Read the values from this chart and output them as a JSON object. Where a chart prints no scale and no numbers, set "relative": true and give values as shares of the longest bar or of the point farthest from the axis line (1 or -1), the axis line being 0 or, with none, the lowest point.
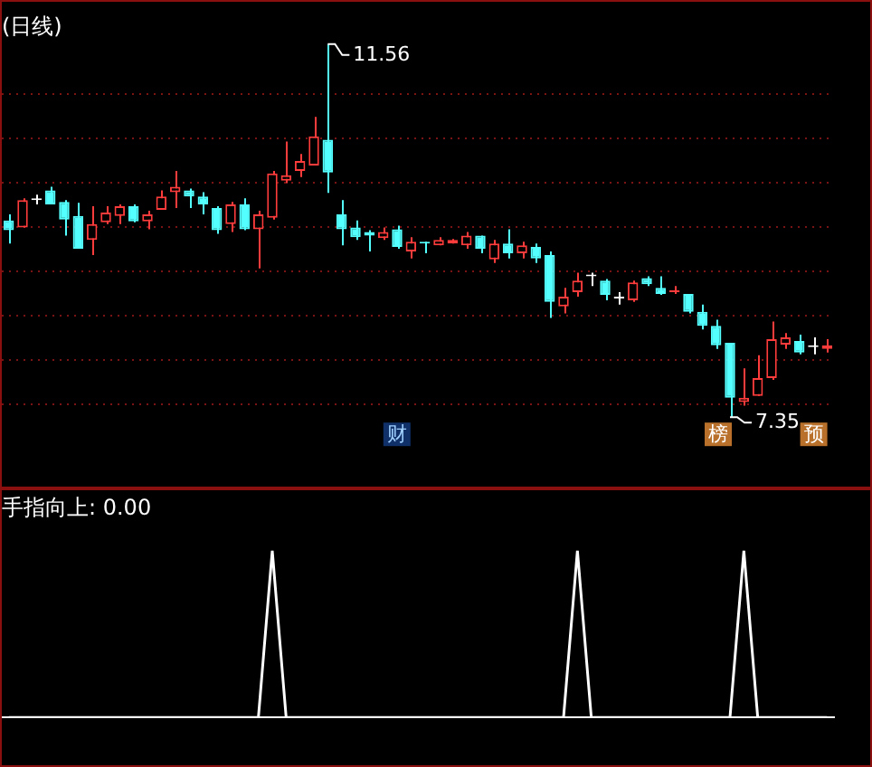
{
  "chart_data": [
    {
      "type": "candlestick",
      "title": "(日线)",
      "categories": [
        null,
        null,
        null,
        null,
        null,
        null,
        null,
        null,
        null,
        null,
        null,
        null,
        null,
        null,
        null,
        null,
        null,
        null,
        null,
        null,
        null,
        null,
        null,
        null,
        null,
        null,
        null,
        null,
        null,
        null,
        null,
        null,
        null,
        null,
        null,
        null,
        null,
        null,
        null,
        null,
        null,
        null,
        null,
        null,
        null,
        null,
        null,
        null,
        null,
        null,
        null,
        null,
        null,
        null,
        null,
        null,
        null,
        null,
        null,
        null
      ],
      "ohlc": [
        [
          9.57,
          9.64,
          9.31,
          9.46
        ],
        [
          9.49,
          9.82,
          9.49,
          9.8
        ],
        [
          9.8,
          9.86,
          9.75,
          9.8
        ],
        [
          9.91,
          9.95,
          9.75,
          9.75
        ],
        [
          9.78,
          9.8,
          9.4,
          9.58
        ],
        [
          9.62,
          9.77,
          9.25,
          9.25
        ],
        [
          9.35,
          9.73,
          9.18,
          9.53
        ],
        [
          9.55,
          9.73,
          9.53,
          9.66
        ],
        [
          9.62,
          9.75,
          9.53,
          9.73
        ],
        [
          9.73,
          9.75,
          9.55,
          9.56
        ],
        [
          9.56,
          9.68,
          9.47,
          9.64
        ],
        [
          9.69,
          9.91,
          9.69,
          9.84
        ],
        [
          9.89,
          10.13,
          9.71,
          9.95
        ],
        [
          9.91,
          9.93,
          9.71,
          9.84
        ],
        [
          9.84,
          9.89,
          9.64,
          9.75
        ],
        [
          9.71,
          9.73,
          9.42,
          9.46
        ],
        [
          9.53,
          9.78,
          9.44,
          9.75
        ],
        [
          9.75,
          9.82,
          9.46,
          9.47
        ],
        [
          9.47,
          9.68,
          9.03,
          9.64
        ],
        [
          9.6,
          10.13,
          9.58,
          10.1
        ],
        [
          10.02,
          10.46,
          9.99,
          10.08
        ],
        [
          10.13,
          10.32,
          10.06,
          10.24
        ],
        [
          10.19,
          10.74,
          10.19,
          10.52
        ],
        [
          10.48,
          11.56,
          9.88,
          10.11
        ],
        [
          9.64,
          9.8,
          9.29,
          9.47
        ],
        [
          9.49,
          9.57,
          9.35,
          9.38
        ],
        [
          9.44,
          9.46,
          9.22,
          9.4
        ],
        [
          9.37,
          9.49,
          9.35,
          9.44
        ],
        [
          9.47,
          9.51,
          9.25,
          9.27
        ],
        [
          9.22,
          9.38,
          9.14,
          9.33
        ],
        [
          9.33,
          9.33,
          9.2,
          9.31
        ],
        [
          9.29,
          9.38,
          9.29,
          9.35
        ],
        [
          9.31,
          9.36,
          9.31,
          9.35
        ],
        [
          9.29,
          9.44,
          9.25,
          9.4
        ],
        [
          9.4,
          9.4,
          9.2,
          9.25
        ],
        [
          9.13,
          9.35,
          9.09,
          9.31
        ],
        [
          9.31,
          9.47,
          9.14,
          9.2
        ],
        [
          9.2,
          9.33,
          9.14,
          9.29
        ],
        [
          9.27,
          9.31,
          9.09,
          9.14
        ],
        [
          9.18,
          9.22,
          8.47,
          8.65
        ],
        [
          8.6,
          8.81,
          8.52,
          8.71
        ],
        [
          8.76,
          8.98,
          8.71,
          8.89
        ],
        [
          8.94,
          8.98,
          8.83,
          8.94
        ],
        [
          8.89,
          8.91,
          8.67,
          8.73
        ],
        [
          8.69,
          8.76,
          8.62,
          8.69
        ],
        [
          8.67,
          8.89,
          8.65,
          8.87
        ],
        [
          8.92,
          8.94,
          8.83,
          8.85
        ],
        [
          8.81,
          8.94,
          8.73,
          8.74
        ],
        [
          8.76,
          8.83,
          8.74,
          8.78
        ],
        [
          8.74,
          8.74,
          8.52,
          8.54
        ],
        [
          8.54,
          8.62,
          8.34,
          8.38
        ],
        [
          8.38,
          8.45,
          8.12,
          8.16
        ],
        [
          8.19,
          8.19,
          7.35,
          7.57
        ],
        [
          7.52,
          7.9,
          7.48,
          7.57
        ],
        [
          7.59,
          8.05,
          7.59,
          7.79
        ],
        [
          7.79,
          8.43,
          7.77,
          8.23
        ],
        [
          8.17,
          8.3,
          8.12,
          8.25
        ],
        [
          8.21,
          8.28,
          8.06,
          8.08
        ],
        [
          8.14,
          8.25,
          8.06,
          8.14
        ],
        [
          8.12,
          8.23,
          8.08,
          8.16
        ]
      ],
      "colors": [
        "#54ffff",
        "#ff3c3c",
        "#ffffff",
        "#54ffff",
        "#54ffff",
        "#54ffff",
        "#ff3c3c",
        "#ff3c3c",
        "#ff3c3c",
        "#54ffff",
        "#ff3c3c",
        "#ff3c3c",
        "#ff3c3c",
        "#54ffff",
        "#54ffff",
        "#54ffff",
        "#ff3c3c",
        "#54ffff",
        "#ff3c3c",
        "#ff3c3c",
        "#ff3c3c",
        "#ff3c3c",
        "#ff3c3c",
        "#54ffff",
        "#54ffff",
        "#54ffff",
        "#54ffff",
        "#ff3c3c",
        "#54ffff",
        "#ff3c3c",
        "#54ffff",
        "#ff3c3c",
        "#ff3c3c",
        "#ff3c3c",
        "#54ffff",
        "#ff3c3c",
        "#54ffff",
        "#ff3c3c",
        "#54ffff",
        "#54ffff",
        "#ff3c3c",
        "#ff3c3c",
        "#ffffff",
        "#54ffff",
        "#ffffff",
        "#ff3c3c",
        "#54ffff",
        "#54ffff",
        "#ff3c3c",
        "#54ffff",
        "#54ffff",
        "#54ffff",
        "#54ffff",
        "#ff3c3c",
        "#ff3c3c",
        "#ff3c3c",
        "#ff3c3c",
        "#54ffff",
        "#ffffff",
        "#ff3c3c"
      ],
      "yticks": [
        {
          "value": 7.5,
          "label": null
        },
        {
          "value": 8,
          "label": null
        },
        {
          "value": 8.5,
          "label": null
        },
        {
          "value": 9,
          "label": null
        },
        {
          "value": 9.5,
          "label": null
        },
        {
          "value": 10,
          "label": null
        },
        {
          "value": 10.5,
          "label": null
        },
        {
          "value": 11,
          "label": null
        }
      ],
      "grid": "y",
      "annotations": [
        "11.56",
        "7.35",
        "财",
        "榜",
        "预"
      ]
    },
    {
      "type": "line",
      "title": "手指向上: 0.00",
      "relative": true,
      "categories": [
        null,
        null,
        null,
        null,
        null,
        null,
        null,
        null,
        null,
        null,
        null,
        null,
        null,
        null,
        null,
        null,
        null,
        null,
        null,
        null,
        null,
        null,
        null,
        null,
        null,
        null,
        null,
        null,
        null,
        null,
        null,
        null,
        null,
        null,
        null,
        null,
        null,
        null,
        null,
        null,
        null,
        null,
        null,
        null,
        null,
        null,
        null,
        null,
        null,
        null,
        null,
        null,
        null,
        null,
        null,
        null,
        null,
        null,
        null,
        null
      ],
      "series": [
        {
          "color": "#ffffff",
          "values": [
            0,
            0,
            0,
            0,
            0,
            0,
            0,
            0,
            0,
            0,
            0,
            0,
            0,
            0,
            0,
            0,
            0,
            0,
            0,
            1,
            0,
            0,
            0,
            0,
            0,
            0,
            0,
            0,
            0,
            0,
            0,
            0,
            0,
            0,
            0,
            0,
            0,
            0,
            0,
            0,
            0,
            1,
            0,
            0,
            0,
            0,
            0,
            0,
            0,
            0,
            0,
            0,
            0,
            1,
            0,
            0,
            0,
            0,
            0,
            0
          ]
        }
      ]
    }
  ]
}
